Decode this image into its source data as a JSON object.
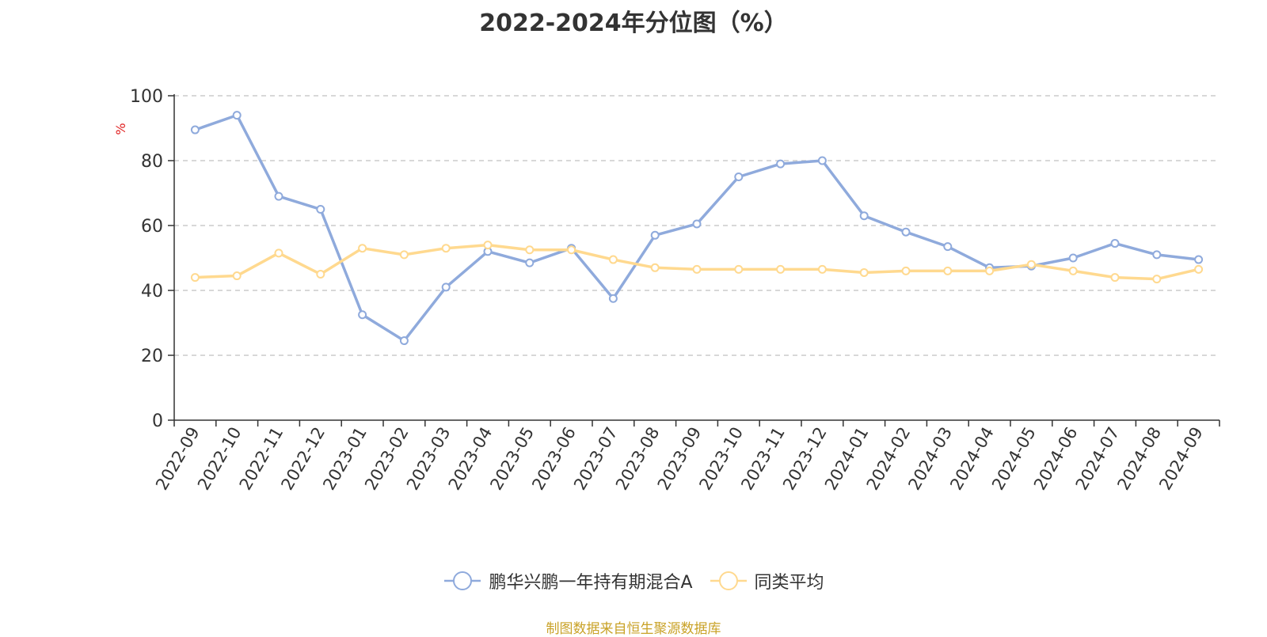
{
  "chart_data": {
    "type": "line",
    "title": "2022-2024年分位图（%）",
    "ylabel": "%",
    "xlabel": "",
    "ylim": [
      0,
      100
    ],
    "yticks": [
      0,
      20,
      40,
      60,
      80,
      100
    ],
    "grid": "horizontal dashed",
    "legend_position": "bottom",
    "categories": [
      "2022-09",
      "2022-10",
      "2022-11",
      "2022-12",
      "2023-01",
      "2023-02",
      "2023-03",
      "2023-04",
      "2023-05",
      "2023-06",
      "2023-07",
      "2023-08",
      "2023-09",
      "2023-10",
      "2023-11",
      "2023-12",
      "2024-01",
      "2024-02",
      "2024-03",
      "2024-04",
      "2024-05",
      "2024-06",
      "2024-07",
      "2024-08",
      "2024-09"
    ],
    "series": [
      {
        "name": "鹏华兴鹏一年持有期混合A",
        "color": "#8FAADC",
        "values": [
          89.5,
          94,
          69,
          65,
          32.5,
          24.5,
          41,
          52,
          48.5,
          53,
          37.5,
          57,
          60.5,
          75,
          79,
          80,
          63,
          58,
          53.5,
          47,
          47.5,
          50,
          54.5,
          51,
          49.5
        ]
      },
      {
        "name": "同类平均",
        "color": "#FFD98F",
        "values": [
          44,
          44.5,
          51.5,
          45,
          53,
          51,
          53,
          54,
          52.5,
          52.5,
          49.5,
          47,
          46.5,
          46.5,
          46.5,
          46.5,
          45.5,
          46,
          46,
          46,
          48,
          46,
          44,
          43.5,
          46.5
        ]
      }
    ]
  },
  "source_note": "制图数据来自恒生聚源数据库",
  "colors": {
    "axis": "#333333",
    "grid": "#cccccc",
    "ylabel": "#e02020",
    "source": "#c9a227",
    "text": "#333333"
  }
}
